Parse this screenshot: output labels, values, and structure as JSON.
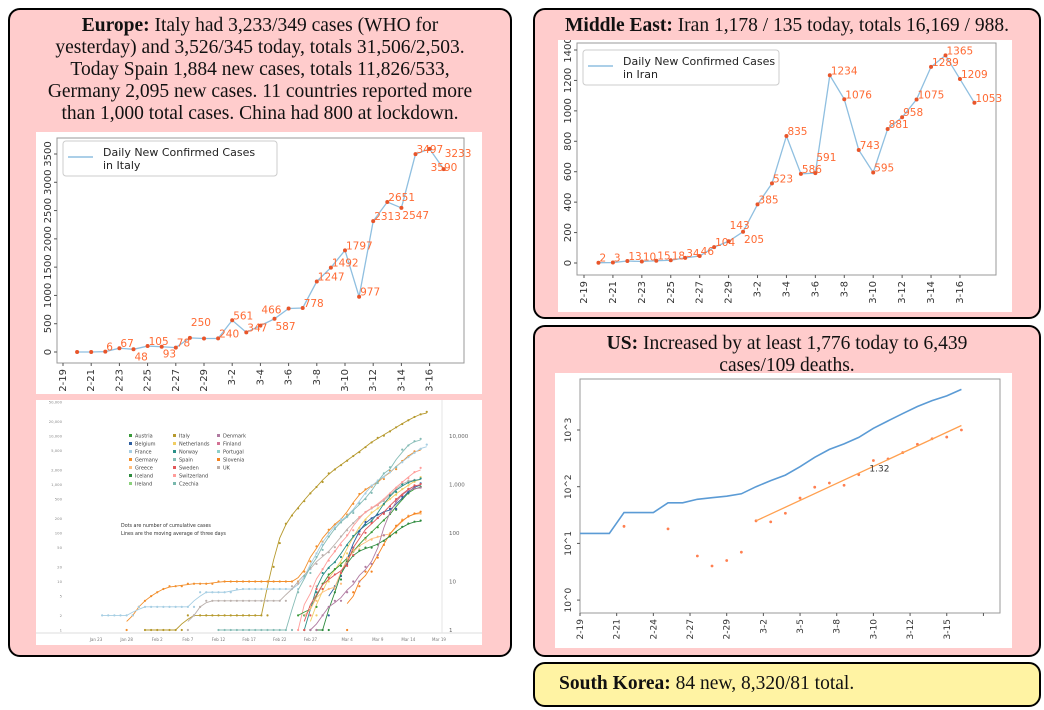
{
  "europe": {
    "heading": "Europe:",
    "text_lines": [
      " Italy had 3,233/349 cases (WHO for",
      "yesterday) and 3,526/345 today, totals 31,506/2,503.",
      "Today Spain 1,884 new cases, totals 11,826/533,",
      "Germany 2,095 new cases. 11 countries reported more",
      "than 1,000 total cases. China had 800 at lockdown."
    ]
  },
  "middle_east": {
    "heading": "Middle East:",
    "text": " Iran 1,178 / 135 today, totals 16,169 / 988."
  },
  "us": {
    "heading": "US:",
    "text_lines": [
      " Increased by at least 1,776 today to 6,439",
      "cases/109 deaths."
    ]
  },
  "south_korea": {
    "heading": "South Korea:",
    "text": " 84 new, 8,320/81 total."
  },
  "colors": {
    "panel_bg": "#ffcccc",
    "korea_bg": "#fff3a3",
    "line": "#8fbfe0",
    "points": "#e8552a",
    "labels": "#ff6a33"
  },
  "chart_data": [
    {
      "id": "italy",
      "type": "line",
      "legend": "Daily New Confirmed Cases\n in Italy",
      "legend_lines": [
        "Daily New Confirmed Cases",
        " in Italy"
      ],
      "legend_position": "top-left",
      "x": [
        "2-20",
        "2-21",
        "2-22",
        "2-23",
        "2-24",
        "2-25",
        "2-26",
        "2-27",
        "2-28",
        "2-29",
        "3-1",
        "3-2",
        "3-3",
        "3-4",
        "3-5",
        "3-6",
        "3-7",
        "3-8",
        "3-9",
        "3-10",
        "3-11",
        "3-12",
        "3-13",
        "3-14",
        "3-15",
        "3-16",
        "3-17"
      ],
      "values": [
        0,
        0,
        6,
        67,
        48,
        105,
        93,
        78,
        250,
        238,
        240,
        561,
        347,
        466,
        587,
        769,
        778,
        1247,
        1492,
        1797,
        977,
        2313,
        2651,
        2547,
        3497,
        3590,
        3233
      ],
      "data_labels": [
        "",
        "",
        "6",
        "67",
        "48",
        "105",
        "93",
        "78",
        "250",
        "",
        "240",
        "561",
        "347",
        "466",
        "587",
        "",
        "778",
        "1247",
        "1492",
        "1797",
        "977",
        "2313",
        "2651",
        "2547",
        "3497",
        "3590",
        "3233"
      ],
      "xticks": [
        "2-19",
        "2-21",
        "2-23",
        "2-25",
        "2-27",
        "2-29",
        "3-2",
        "3-4",
        "3-6",
        "3-8",
        "3-10",
        "3-12",
        "3-14",
        "3-16"
      ],
      "yticks": [
        0,
        500,
        1000,
        1500,
        2000,
        2500,
        3000,
        3500
      ],
      "ylim": [
        -200,
        3800
      ]
    },
    {
      "id": "iran",
      "type": "line",
      "legend_lines": [
        "Daily New Confirmed Cases",
        " in Iran"
      ],
      "legend_position": "top-left",
      "x": [
        "2-20",
        "2-21",
        "2-22",
        "2-23",
        "2-24",
        "2-25",
        "2-26",
        "2-27",
        "2-28",
        "2-29",
        "3-1",
        "3-2",
        "3-3",
        "3-4",
        "3-5",
        "3-6",
        "3-7",
        "3-8",
        "3-9",
        "3-10",
        "3-11",
        "3-12",
        "3-13",
        "3-14",
        "3-15",
        "3-16",
        "3-17"
      ],
      "values": [
        2,
        3,
        13,
        10,
        15,
        18,
        34,
        46,
        104,
        143,
        205,
        385,
        523,
        835,
        586,
        591,
        1234,
        1076,
        743,
        595,
        881,
        958,
        1075,
        1289,
        1365,
        1209,
        1053
      ],
      "data_labels": [
        "2",
        "3",
        "13",
        "10",
        "15",
        "18",
        "34",
        "46",
        "104",
        "143",
        "205",
        "385",
        "523",
        "835",
        "586",
        "591",
        "1234",
        "1076",
        "743",
        "595",
        "881",
        "958",
        "1075",
        "1289",
        "1365",
        "1209",
        "1053"
      ],
      "xticks": [
        "2-19",
        "2-21",
        "2-23",
        "2-25",
        "2-27",
        "2-29",
        "3-2",
        "3-4",
        "3-6",
        "3-8",
        "3-10",
        "3-12",
        "3-14",
        "3-16"
      ],
      "yticks": [
        0,
        200,
        400,
        600,
        800,
        1000,
        1200,
        1400
      ],
      "ylim": [
        -70,
        1430
      ]
    },
    {
      "id": "us",
      "type": "line",
      "yscale": "log",
      "ylim": [
        0.6,
        8000
      ],
      "xticks": [
        "2-19",
        "2-21",
        "2-24",
        "2-27",
        "2-29",
        "3-2",
        "3-5",
        "3-8",
        "3-10",
        "3-12",
        "3-15",
        ""
      ],
      "yticks": [
        "10^0",
        "10^1",
        "10^2",
        "10^3"
      ],
      "series": [
        {
          "style": "line",
          "color": "#5b9bd5",
          "x": [
            "2-19",
            "2-21",
            "2-22",
            "2-24",
            "2-25",
            "2-26",
            "2-27",
            "2-28",
            "2-29",
            "3-1",
            "3-2",
            "3-3",
            "3-4",
            "3-5",
            "3-6",
            "3-7",
            "3-8",
            "3-9",
            "3-10",
            "3-11",
            "3-12",
            "3-13",
            "3-14",
            "3-15",
            "3-16"
          ],
          "values": [
            15,
            15,
            35,
            35,
            52,
            52,
            60,
            64,
            68,
            75,
            100,
            128,
            160,
            225,
            330,
            455,
            570,
            740,
            1070,
            1450,
            1950,
            2600,
            3300,
            4000,
            5200
          ]
        },
        {
          "style": "points",
          "color": "#ff7f50",
          "x": [
            "2-22",
            "2-25",
            "2-27",
            "2-28",
            "2-29",
            "3-1",
            "3-2",
            "3-3",
            "3-4",
            "3-5",
            "3-6",
            "3-7",
            "3-8",
            "3-9",
            "3-10",
            "3-11",
            "3-12",
            "3-13",
            "3-14",
            "3-15",
            "3-16"
          ],
          "values": [
            20,
            18,
            6,
            4,
            5,
            7,
            25,
            24,
            34,
            63,
            98,
            116,
            106,
            163,
            290,
            310,
            400,
            560,
            700,
            750,
            1000
          ]
        },
        {
          "style": "fit",
          "color": "#ffa050",
          "x": [
            "3-2",
            "3-16"
          ],
          "values": [
            25,
            1200
          ]
        }
      ],
      "annotation": "1.32",
      "annotation_at": {
        "x": "3-10",
        "y": 210
      }
    },
    {
      "id": "europe-cumulative",
      "type": "line",
      "yscale": "log",
      "left_yticks": [
        "50,000",
        "20,000",
        "10,000",
        "5,000",
        "2,000",
        "1,000",
        "500",
        "200",
        "100",
        "50",
        "20",
        "10",
        "5",
        "2",
        "1"
      ],
      "right_yticks": [
        "10,000",
        "1,000",
        "100",
        "10",
        "1"
      ],
      "xticks": [
        "Jan 23",
        "Jan 28",
        "Feb 2",
        "Feb 7",
        "Feb 12",
        "Feb 17",
        "Feb 22",
        "Feb 27",
        "Mar 4",
        "Mar 9",
        "Mar 14",
        "Mar 19"
      ],
      "note_lines": [
        "Dots are number of cumulative cases",
        "Lines are the moving average of three days"
      ],
      "legend": [
        [
          {
            "name": "Austria",
            "color": "#3a9a3a"
          },
          {
            "name": "Belgium",
            "color": "#2f5fa0"
          },
          {
            "name": "France",
            "color": "#a6cee3"
          },
          {
            "name": "Germany",
            "color": "#f28e2b"
          },
          {
            "name": "Greece",
            "color": "#ffbe7d"
          },
          {
            "name": "Iceland",
            "color": "#2e8b3e"
          },
          {
            "name": "Ireland",
            "color": "#8cd17d"
          }
        ],
        [
          {
            "name": "Italy",
            "color": "#b6992d"
          },
          {
            "name": "Netherlands",
            "color": "#f1ce63"
          },
          {
            "name": "Norway",
            "color": "#2a8f88"
          },
          {
            "name": "Spain",
            "color": "#86bcb6"
          },
          {
            "name": "Sweden",
            "color": "#e15759"
          },
          {
            "name": "Switzerland",
            "color": "#ff9d9a"
          },
          {
            "name": "Czechia",
            "color": "#79b8ad"
          }
        ],
        [
          {
            "name": "Denmark",
            "color": "#b07aa1"
          },
          {
            "name": "Finland",
            "color": "#d37295"
          },
          {
            "name": "Portugal",
            "color": "#8ecfc9"
          },
          {
            "name": "Slovenia",
            "color": "#f5821f"
          },
          {
            "name": "UK",
            "color": "#bab0ac"
          }
        ]
      ],
      "series": [
        {
          "name": "Italy",
          "color": "#b6992d",
          "start": "Jan 31",
          "values": [
            1,
            1,
            1,
            1,
            1,
            1,
            1,
            2,
            2,
            2,
            2,
            2,
            2,
            2,
            2,
            2,
            2,
            2,
            2,
            2,
            2,
            20,
            62,
            155,
            229,
            322,
            453,
            655,
            888,
            1128,
            1694,
            2036,
            2502,
            3089,
            3858,
            4636,
            5883,
            7375,
            9172,
            10149,
            12462,
            15113,
            17660,
            21157,
            24747,
            27980,
            31506
          ]
        },
        {
          "name": "Germany",
          "color": "#f28e2b",
          "start": "Jan 28",
          "values": [
            1,
            2,
            3,
            4,
            5,
            6,
            7,
            8,
            8,
            8,
            9,
            9,
            9,
            9,
            9,
            10,
            10,
            10,
            10,
            10,
            10,
            10,
            10,
            10,
            10,
            10,
            10,
            10,
            10,
            16,
            26,
            53,
            66,
            117,
            150,
            188,
            240,
            400,
            639,
            795,
            902,
            1139,
            1296,
            1908,
            2078,
            3062,
            3795,
            4838,
            5400
          ]
        },
        {
          "name": "France",
          "color": "#a6cee3",
          "start": "Jan 24",
          "values": [
            2,
            2,
            2,
            2,
            2,
            2,
            3,
            3,
            3,
            3,
            3,
            3,
            3,
            3,
            3,
            3,
            6,
            6,
            6,
            6,
            6,
            6,
            7,
            7,
            7,
            7,
            7,
            7,
            7,
            7,
            7,
            7,
            7,
            12,
            18,
            38,
            57,
            100,
            130,
            191,
            212,
            285,
            423,
            653,
            949,
            1209,
            1412,
            1784,
            2281,
            2876,
            3661,
            4499,
            5423,
            6633
          ]
        },
        {
          "name": "UK",
          "color": "#bab0ac",
          "start": "Feb 7",
          "values": [
            1,
            2,
            3,
            4,
            4,
            4,
            4,
            4,
            4,
            4,
            4,
            4,
            4,
            4,
            4,
            4,
            4,
            8,
            9,
            13,
            19,
            23,
            35,
            40,
            51,
            85,
            114,
            160,
            206,
            271,
            321,
            373,
            456,
            590,
            797,
            1061,
            1200,
            1250
          ]
        },
        {
          "name": "Spain",
          "color": "#86bcb6",
          "start": "Feb 12",
          "values": [
            1,
            1,
            1,
            1,
            1,
            1,
            1,
            1,
            1,
            1,
            1,
            1,
            1,
            6,
            13,
            15,
            32,
            45,
            84,
            120,
            165,
            222,
            259,
            400,
            500,
            673,
            1073,
            1695,
            2277,
            2277,
            5232,
            6391,
            7798,
            8744
          ]
        },
        {
          "name": "Switzerland",
          "color": "#ff9d9a",
          "start": "Feb 25",
          "values": [
            1,
            1,
            8,
            8,
            18,
            27,
            42,
            56,
            90,
            114,
            214,
            268,
            337,
            374,
            491,
            652,
            858,
            1125,
            1359,
            1800,
            2200
          ]
        },
        {
          "name": "Netherlands",
          "color": "#f1ce63",
          "start": "Feb 27",
          "values": [
            1,
            2,
            7,
            10,
            18,
            24,
            38,
            82,
            128,
            188,
            265,
            321,
            382,
            503,
            614,
            804,
            959,
            1135,
            1413
          ]
        },
        {
          "name": "Norway",
          "color": "#2a8f88",
          "start": "Feb 26",
          "values": [
            1,
            1,
            6,
            15,
            19,
            25,
            32,
            56,
            87,
            108,
            147,
            176,
            205,
            400,
            598,
            702,
            996,
            1090,
            1221,
            1333
          ]
        },
        {
          "name": "Austria",
          "color": "#3a9a3a",
          "start": "Feb 25",
          "values": [
            2,
            2,
            3,
            3,
            9,
            14,
            18,
            21,
            29,
            41,
            55,
            79,
            104,
            131,
            182,
            246,
            302,
            504,
            655,
            860,
            900
          ]
        },
        {
          "name": "Belgium",
          "color": "#2f5fa0",
          "start": "Mar 1",
          "values": [
            2,
            8,
            13,
            23,
            50,
            109,
            169,
            200,
            239,
            267,
            314,
            314,
            559,
            689,
            886,
            1058
          ]
        },
        {
          "name": "Greece",
          "color": "#ffbe7d",
          "start": "Feb 26",
          "values": [
            1,
            3,
            4,
            7,
            7,
            7,
            9,
            31,
            45,
            46,
            73,
            73,
            84,
            89,
            99,
            99,
            190,
            228,
            250,
            250
          ]
        },
        {
          "name": "Slovenia",
          "color": "#f5821f",
          "start": "Mar 4",
          "values": [
            1,
            6,
            8,
            16,
            16,
            31,
            57,
            89,
            141,
            181,
            219,
            253,
            275
          ]
        },
        {
          "name": "Iceland",
          "color": "#2e8b3e",
          "start": "Feb 28",
          "values": [
            1,
            1,
            1,
            6,
            11,
            26,
            34,
            43,
            50,
            50,
            58,
            69,
            85,
            103,
            134,
            156,
            171,
            180
          ]
        },
        {
          "name": "Denmark",
          "color": "#b07aa1",
          "start": "Feb 27",
          "values": [
            1,
            1,
            2,
            3,
            4,
            4,
            6,
            10,
            10,
            20,
            23,
            35,
            90,
            262,
            442,
            615,
            801,
            827,
            864
          ]
        },
        {
          "name": "Sweden",
          "color": "#e15759",
          "start": "Feb 26",
          "values": [
            1,
            2,
            7,
            7,
            12,
            14,
            15,
            21,
            35,
            94,
            101,
            161,
            203,
            248,
            355,
            500,
            599,
            814,
            961,
            1022
          ]
        }
      ]
    }
  ]
}
